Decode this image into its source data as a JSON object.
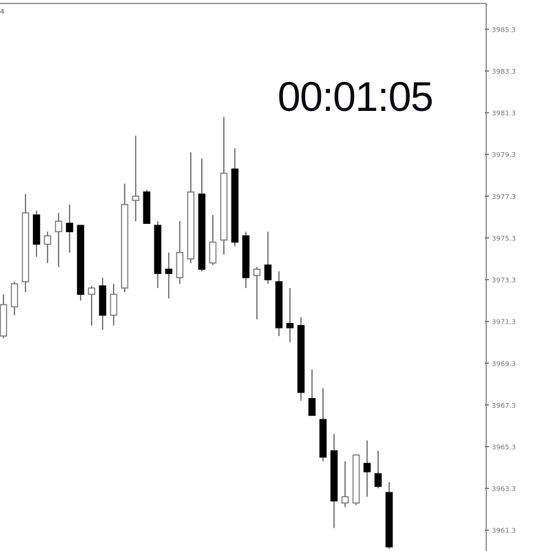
{
  "corner_label": "4",
  "timer": "00:01:05",
  "chart_data": {
    "type": "candlestick",
    "grid": false,
    "y_axis_position": "right",
    "ylim": [
      3960.3,
      3986.7
    ],
    "y_ticks": [
      "3985.3",
      "3983.3",
      "3981.3",
      "3979.3",
      "3977.3",
      "3975.3",
      "3973.3",
      "3971.3",
      "3969.3",
      "3967.3",
      "3965.3",
      "3963.3",
      "3961.3"
    ],
    "colors": {
      "bear_body": "#000000",
      "bull_body": "#ffffff",
      "wick": "#808080",
      "border": "#999999"
    },
    "candles": [
      {
        "o": 3970.6,
        "h": 3972.6,
        "l": 3970.5,
        "c": 3972.1
      },
      {
        "o": 3972.0,
        "h": 3973.2,
        "l": 3971.6,
        "c": 3973.1
      },
      {
        "o": 3973.2,
        "h": 3977.4,
        "l": 3972.7,
        "c": 3976.5
      },
      {
        "o": 3976.4,
        "h": 3976.6,
        "l": 3974.4,
        "c": 3975.0
      },
      {
        "o": 3975.0,
        "h": 3975.6,
        "l": 3974.1,
        "c": 3975.4
      },
      {
        "o": 3975.6,
        "h": 3976.5,
        "l": 3973.9,
        "c": 3976.1
      },
      {
        "o": 3976.0,
        "h": 3976.9,
        "l": 3974.6,
        "c": 3975.6
      },
      {
        "o": 3975.9,
        "h": 3975.9,
        "l": 3972.3,
        "c": 3972.6
      },
      {
        "o": 3972.6,
        "h": 3973.0,
        "l": 3971.1,
        "c": 3972.9
      },
      {
        "o": 3973.0,
        "h": 3973.4,
        "l": 3970.9,
        "c": 3971.6
      },
      {
        "o": 3971.6,
        "h": 3973.1,
        "l": 3971.1,
        "c": 3972.6
      },
      {
        "o": 3972.9,
        "h": 3977.9,
        "l": 3972.7,
        "c": 3976.9
      },
      {
        "o": 3977.1,
        "h": 3980.2,
        "l": 3976.1,
        "c": 3977.3
      },
      {
        "o": 3977.5,
        "h": 3977.6,
        "l": 3976.0,
        "c": 3976.0
      },
      {
        "o": 3975.9,
        "h": 3976.1,
        "l": 3972.9,
        "c": 3973.6
      },
      {
        "o": 3973.8,
        "h": 3974.6,
        "l": 3972.4,
        "c": 3973.6
      },
      {
        "o": 3973.4,
        "h": 3976.1,
        "l": 3973.1,
        "c": 3974.6
      },
      {
        "o": 3974.3,
        "h": 3979.4,
        "l": 3974.1,
        "c": 3977.5
      },
      {
        "o": 3977.4,
        "h": 3979.1,
        "l": 3973.7,
        "c": 3973.8
      },
      {
        "o": 3974.1,
        "h": 3976.4,
        "l": 3974.0,
        "c": 3975.1
      },
      {
        "o": 3975.2,
        "h": 3981.1,
        "l": 3974.5,
        "c": 3978.4
      },
      {
        "o": 3978.6,
        "h": 3979.6,
        "l": 3974.9,
        "c": 3975.1
      },
      {
        "o": 3975.4,
        "h": 3975.6,
        "l": 3972.9,
        "c": 3973.4
      },
      {
        "o": 3973.5,
        "h": 3973.9,
        "l": 3971.4,
        "c": 3973.8
      },
      {
        "o": 3974.0,
        "h": 3975.6,
        "l": 3973.1,
        "c": 3973.3
      },
      {
        "o": 3973.2,
        "h": 3973.7,
        "l": 3970.6,
        "c": 3971.0
      },
      {
        "o": 3971.2,
        "h": 3972.9,
        "l": 3970.3,
        "c": 3971.0
      },
      {
        "o": 3971.1,
        "h": 3971.5,
        "l": 3967.5,
        "c": 3967.9
      },
      {
        "o": 3967.6,
        "h": 3969.0,
        "l": 3966.8,
        "c": 3966.8
      },
      {
        "o": 3966.6,
        "h": 3968.1,
        "l": 3964.6,
        "c": 3964.8
      },
      {
        "o": 3965.1,
        "h": 3965.9,
        "l": 3961.4,
        "c": 3962.7
      },
      {
        "o": 3962.6,
        "h": 3964.6,
        "l": 3962.4,
        "c": 3962.9
      },
      {
        "o": 3962.6,
        "h": 3964.9,
        "l": 3962.5,
        "c": 3964.9
      },
      {
        "o": 3964.5,
        "h": 3965.6,
        "l": 3962.9,
        "c": 3964.1
      },
      {
        "o": 3964.0,
        "h": 3965.1,
        "l": 3963.3,
        "c": 3963.4
      },
      {
        "o": 3963.1,
        "h": 3963.6,
        "l": 3960.4,
        "c": 3960.5
      }
    ]
  }
}
